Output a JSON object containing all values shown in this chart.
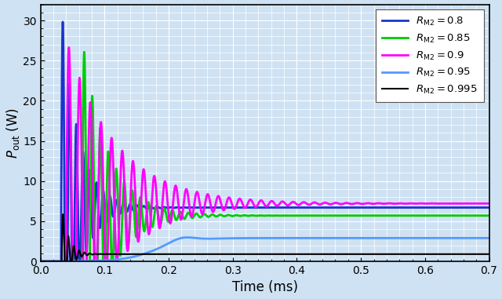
{
  "xlabel": "Time (ms)",
  "ylabel": "$P_{\\mathrm{out}}$ (W)",
  "xlim": [
    0,
    0.7
  ],
  "ylim": [
    0,
    32
  ],
  "yticks": [
    0,
    5,
    10,
    15,
    20,
    25,
    30
  ],
  "xticks": [
    0,
    0.1,
    0.2,
    0.3,
    0.4,
    0.5,
    0.6,
    0.7
  ],
  "background_color": "#cfe2f3",
  "grid_color": "#ffffff",
  "curves": [
    {
      "R_M2": 0.8,
      "color": "#1a35cc",
      "linewidth": 2.0,
      "P_ss": 6.7,
      "amp": 25.5,
      "gamma": 38,
      "omega_hz": 95,
      "t_start": 0.032,
      "label": "$R_{\\mathrm{M2}} = 0.8$"
    },
    {
      "R_M2": 0.85,
      "color": "#00cc00",
      "linewidth": 2.0,
      "P_ss": 5.7,
      "amp": 22.0,
      "gamma": 25,
      "omega_hz": 80,
      "t_start": 0.065,
      "label": "$R_{\\mathrm{M2}} = 0.85$"
    },
    {
      "R_M2": 0.9,
      "color": "#ff00ff",
      "linewidth": 2.0,
      "P_ss": 7.2,
      "amp": 20.5,
      "gamma": 13,
      "omega_hz": 60,
      "t_start": 0.04,
      "label": "$R_{\\mathrm{M2}} = 0.9$"
    },
    {
      "R_M2": 0.95,
      "color": "#5599ff",
      "linewidth": 2.0,
      "P_ss": 2.9,
      "amp": 0.0,
      "gamma": 0,
      "omega_hz": 0,
      "t_start": 0.1,
      "label": "$R_{\\mathrm{M2}} = 0.95$"
    },
    {
      "R_M2": 0.995,
      "color": "#000000",
      "linewidth": 1.5,
      "P_ss": 0.9,
      "amp": 6.0,
      "gamma": 95,
      "omega_hz": 120,
      "t_start": 0.033,
      "label": "$R_{\\mathrm{M2}} = 0.995$"
    }
  ]
}
